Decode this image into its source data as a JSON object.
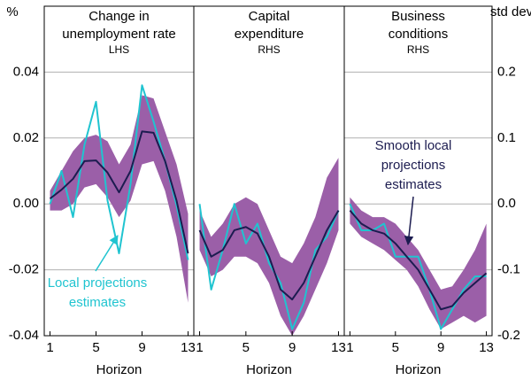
{
  "chart_data": [
    {
      "type": "band-line",
      "title": [
        "Change in",
        "unemployment rate"
      ],
      "subtitle": "LHS",
      "x": [
        1,
        2,
        3,
        4,
        5,
        6,
        7,
        8,
        9,
        10,
        11,
        12,
        13
      ],
      "xlim": [
        0.5,
        13.5
      ],
      "xticks": [
        1,
        5,
        9,
        13
      ],
      "xlabel": "Horizon",
      "ylim": [
        -0.04,
        0.06
      ],
      "yticks": [
        0.04,
        0.02,
        {
          "value": 0,
          "label": "0.00"
        },
        -0.02,
        -0.04
      ],
      "ylabel": "%",
      "yaxis_side": "left",
      "grid": true,
      "band": {
        "color": "#9b5fa8",
        "lower": [
          -0.002,
          -0.002,
          0.0,
          0.005,
          0.006,
          0.002,
          -0.004,
          0.001,
          0.012,
          0.013,
          0.004,
          -0.01,
          -0.03
        ],
        "upper": [
          0.004,
          0.01,
          0.016,
          0.02,
          0.021,
          0.019,
          0.012,
          0.018,
          0.033,
          0.032,
          0.022,
          0.012,
          -0.003
        ]
      },
      "local": {
        "color": "#20c4d0",
        "values": [
          0.0,
          0.01,
          -0.004,
          0.018,
          0.031,
          0.001,
          -0.015,
          0.006,
          0.036,
          0.025,
          0.013,
          -0.0005,
          -0.017
        ]
      },
      "smooth": {
        "color": "#1c1c50",
        "values": [
          0.0016,
          0.0043,
          0.0076,
          0.013,
          0.0132,
          0.0095,
          0.0035,
          0.01,
          0.022,
          0.0216,
          0.013,
          0.001,
          -0.015
        ]
      },
      "annotation": {
        "text": [
          "Local projections",
          "estimates"
        ],
        "color": "#20c4d0"
      }
    },
    {
      "type": "band-line",
      "title": [
        "Capital",
        "expenditure"
      ],
      "subtitle": "RHS",
      "x": [
        1,
        2,
        3,
        4,
        5,
        6,
        7,
        8,
        9,
        10,
        11,
        12,
        13
      ],
      "xlim": [
        0.5,
        13.5
      ],
      "xticks": [
        1,
        5,
        9,
        13
      ],
      "xlabel": "Horizon",
      "ylim": [
        -0.2,
        0.3
      ],
      "grid": true,
      "band": {
        "color": "#9b5fa8",
        "lower": [
          -0.07,
          -0.11,
          -0.1,
          -0.08,
          -0.08,
          -0.09,
          -0.12,
          -0.17,
          -0.2,
          -0.17,
          -0.13,
          -0.09,
          -0.04
        ],
        "upper": [
          -0.01,
          -0.05,
          -0.03,
          0.0,
          0.01,
          0.0,
          -0.04,
          -0.08,
          -0.09,
          -0.06,
          -0.02,
          0.04,
          0.07
        ]
      },
      "local": {
        "color": "#20c4d0",
        "values": [
          0.0,
          -0.13,
          -0.07,
          0.0,
          -0.06,
          -0.03,
          -0.09,
          -0.12,
          -0.19,
          -0.15,
          -0.07,
          -0.05,
          -0.01
        ]
      },
      "smooth": {
        "color": "#1c1c50",
        "values": [
          -0.04,
          -0.08,
          -0.07,
          -0.04,
          -0.035,
          -0.045,
          -0.08,
          -0.13,
          -0.145,
          -0.12,
          -0.08,
          -0.04,
          -0.01
        ]
      }
    },
    {
      "type": "band-line",
      "title": [
        "Business",
        "conditions"
      ],
      "subtitle": "RHS",
      "x": [
        1,
        2,
        3,
        4,
        5,
        6,
        7,
        8,
        9,
        10,
        11,
        12,
        13
      ],
      "xlim": [
        0.5,
        13.5
      ],
      "xticks": [
        1,
        5,
        9,
        13
      ],
      "xlabel": "Horizon",
      "ylim": [
        -0.2,
        0.3
      ],
      "yticks": [
        0.2,
        0.1,
        {
          "value": 0,
          "label": "0.0"
        },
        -0.1,
        -0.2
      ],
      "ylabel": "std dev",
      "yaxis_side": "right",
      "grid": true,
      "band": {
        "color": "#9b5fa8",
        "lower": [
          -0.03,
          -0.05,
          -0.06,
          -0.07,
          -0.085,
          -0.1,
          -0.125,
          -0.16,
          -0.19,
          -0.18,
          -0.17,
          -0.18,
          -0.17
        ],
        "upper": [
          0.01,
          -0.01,
          -0.02,
          -0.02,
          -0.03,
          -0.05,
          -0.07,
          -0.1,
          -0.13,
          -0.125,
          -0.1,
          -0.07,
          -0.03
        ]
      },
      "local": {
        "color": "#20c4d0",
        "values": [
          0.0,
          -0.04,
          -0.04,
          -0.03,
          -0.08,
          -0.08,
          -0.08,
          -0.13,
          -0.19,
          -0.16,
          -0.13,
          -0.11,
          -0.11
        ]
      },
      "smooth": {
        "color": "#1c1c50",
        "values": [
          -0.01,
          -0.03,
          -0.04,
          -0.045,
          -0.06,
          -0.08,
          -0.1,
          -0.13,
          -0.16,
          -0.155,
          -0.135,
          -0.12,
          -0.105
        ]
      },
      "annotation": {
        "text": [
          "Smooth local",
          "projections",
          "estimates"
        ],
        "color": "#1c1c50"
      }
    }
  ]
}
